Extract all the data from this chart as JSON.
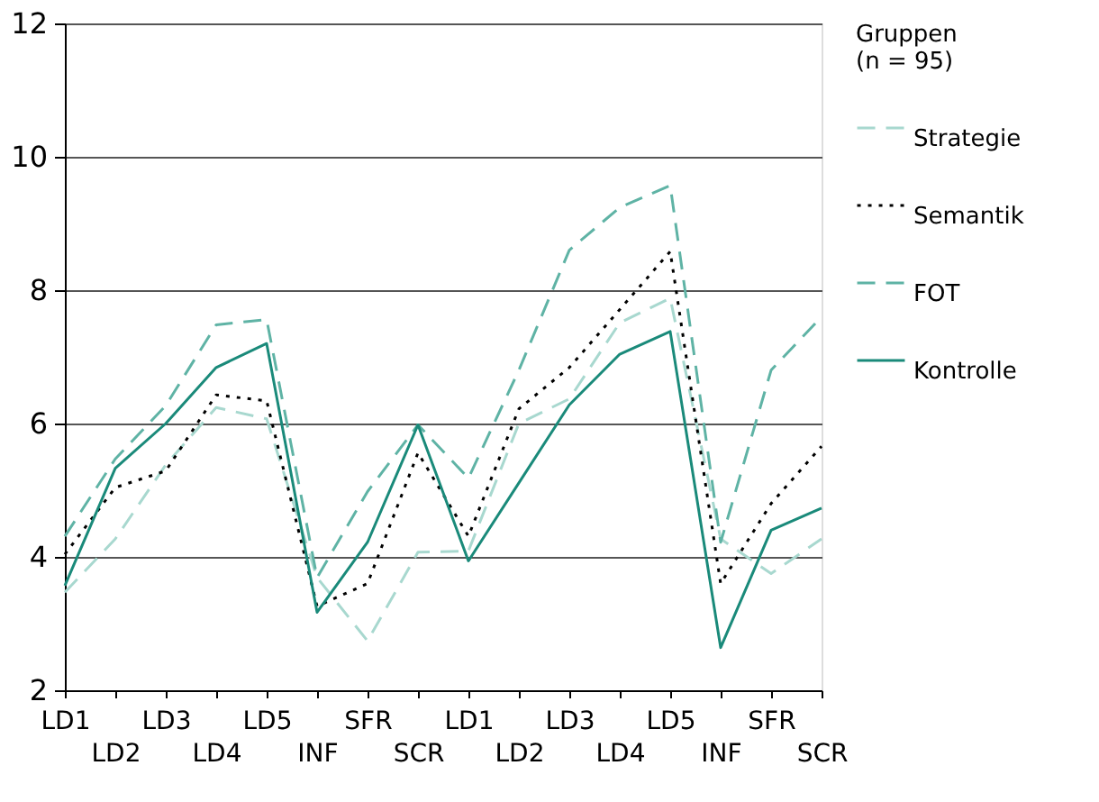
{
  "chart_data": {
    "type": "line",
    "categories": [
      "LD1",
      "LD2",
      "LD3",
      "LD4",
      "LD5",
      "INF",
      "SFR",
      "SCR",
      "LD1",
      "LD2",
      "LD3",
      "LD4",
      "LD5",
      "INF",
      "SFR",
      "SCR"
    ],
    "series": [
      {
        "name": "Strategie",
        "color": "#a8d8cf",
        "line_style": "dashed",
        "values": [
          3.47,
          4.27,
          5.38,
          6.24,
          6.07,
          3.69,
          2.74,
          4.07,
          4.09,
          6.0,
          6.37,
          7.51,
          7.88,
          4.27,
          3.75,
          4.27
        ]
      },
      {
        "name": "Semantik",
        "color": "#000000",
        "line_style": "dotted",
        "values": [
          4.04,
          5.04,
          5.29,
          6.43,
          6.34,
          3.26,
          3.6,
          5.56,
          4.31,
          6.22,
          6.84,
          7.71,
          8.58,
          3.6,
          4.8,
          5.66
        ]
      },
      {
        "name": "FOT",
        "color": "#5fb3a5",
        "line_style": "dashed",
        "values": [
          4.31,
          5.47,
          6.27,
          7.48,
          7.56,
          3.69,
          4.98,
          5.98,
          5.18,
          6.8,
          8.6,
          9.24,
          9.57,
          4.22,
          6.8,
          7.6
        ]
      },
      {
        "name": "Kontrolle",
        "color": "#1a8a7a",
        "line_style": "solid",
        "values": [
          3.57,
          5.33,
          6.0,
          6.84,
          7.2,
          3.17,
          4.22,
          5.98,
          3.94,
          5.11,
          6.28,
          7.04,
          7.38,
          2.64,
          4.4,
          4.73
        ]
      }
    ],
    "ylim": [
      2,
      12
    ],
    "yticks": [
      2,
      4,
      6,
      8,
      10,
      12
    ],
    "grid": "y",
    "legend": "right",
    "legend_title": "Gruppen\n(n = 95)",
    "marker": "none"
  }
}
